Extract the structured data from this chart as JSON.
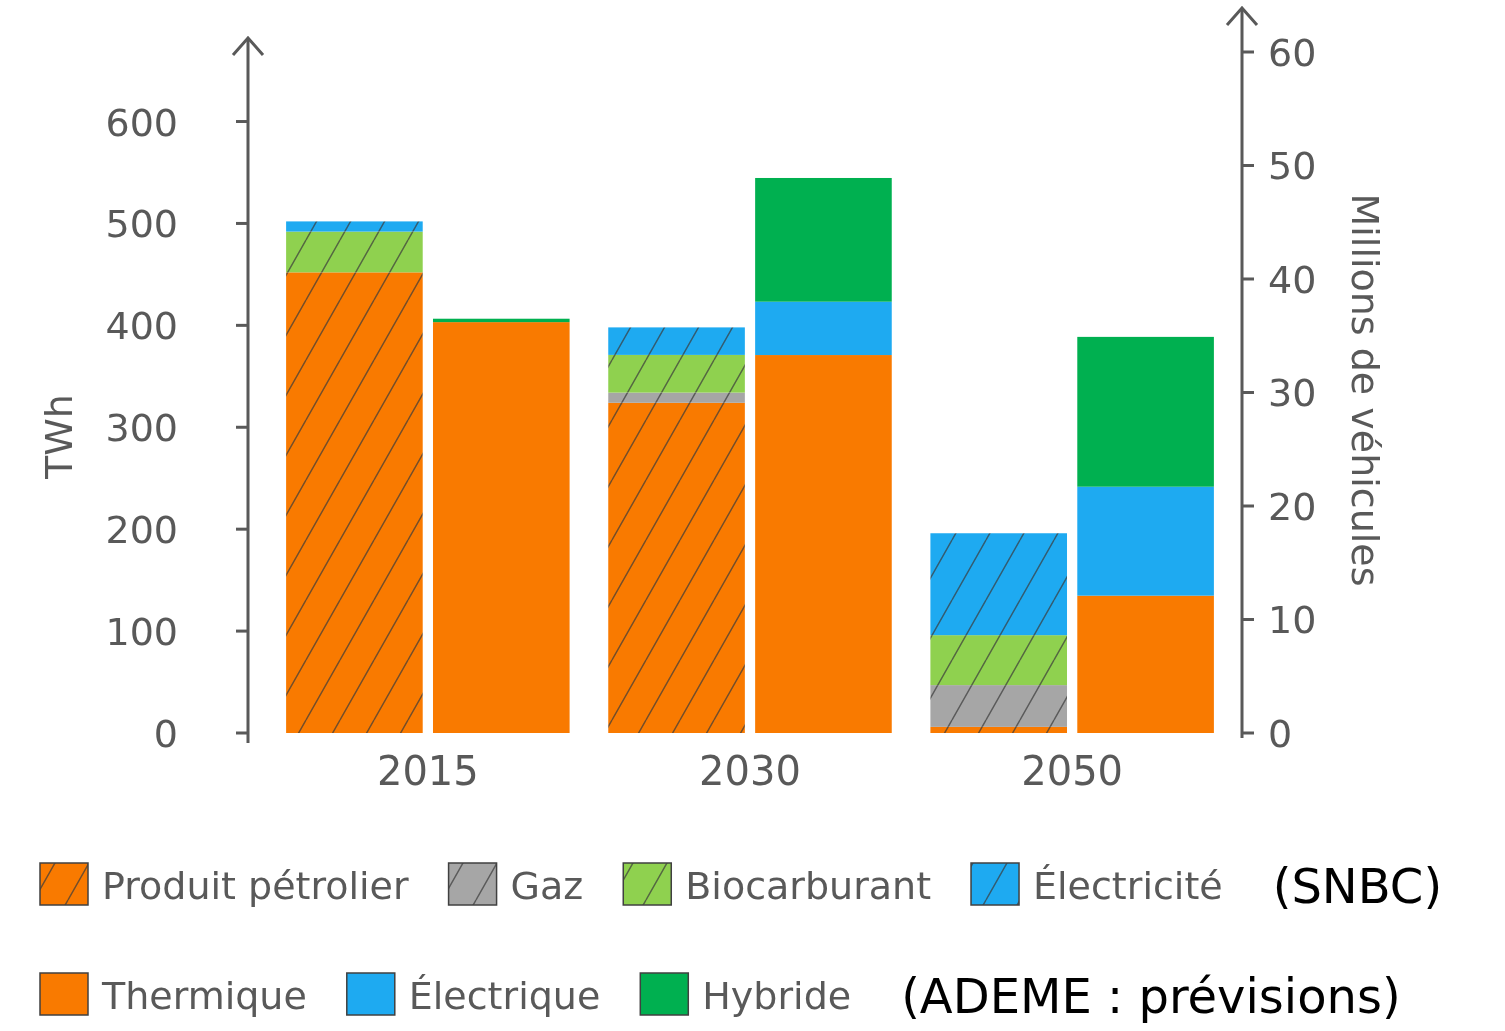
{
  "chart_data": {
    "type": "bar",
    "stacked": true,
    "categories": [
      "2015",
      "2030",
      "2050"
    ],
    "ylabel": "TWh",
    "y2label": "Millions de véhicules",
    "ylim": [
      0,
      680
    ],
    "yticks": [
      0,
      100,
      200,
      300,
      400,
      500,
      600
    ],
    "y2lim": [
      0,
      63.7
    ],
    "y2ticks": [
      0,
      10,
      20,
      30,
      40,
      50,
      60
    ],
    "series": [
      {
        "name": "Produit pétrolier",
        "color": "#f97a00",
        "axis": "y",
        "values": [
          452,
          324,
          6
        ]
      },
      {
        "name": "Gaz",
        "color": "#a6a6a6",
        "axis": "y",
        "values": [
          0,
          10,
          41
        ]
      },
      {
        "name": "Biocarburant",
        "color": "#8fd14f",
        "axis": "y",
        "values": [
          40,
          37,
          49
        ]
      },
      {
        "name": "Électricité",
        "color": "#1eaaf1",
        "axis": "y",
        "values": [
          10,
          27,
          100
        ]
      },
      {
        "name": "Thermique",
        "color": "#f97a00",
        "axis": "y2",
        "values": [
          36.2,
          33.3,
          12.1
        ]
      },
      {
        "name": "Électrique",
        "color": "#1eaaf1",
        "axis": "y2",
        "values": [
          0,
          4.7,
          9.6
        ]
      },
      {
        "name": "Hybride",
        "color": "#00b050",
        "axis": "y2",
        "values": [
          0.3,
          10.9,
          13.2
        ]
      }
    ],
    "legend": "bottom",
    "annotations": [
      "(SNBC)",
      "(ADEME : prévisions)"
    ]
  }
}
